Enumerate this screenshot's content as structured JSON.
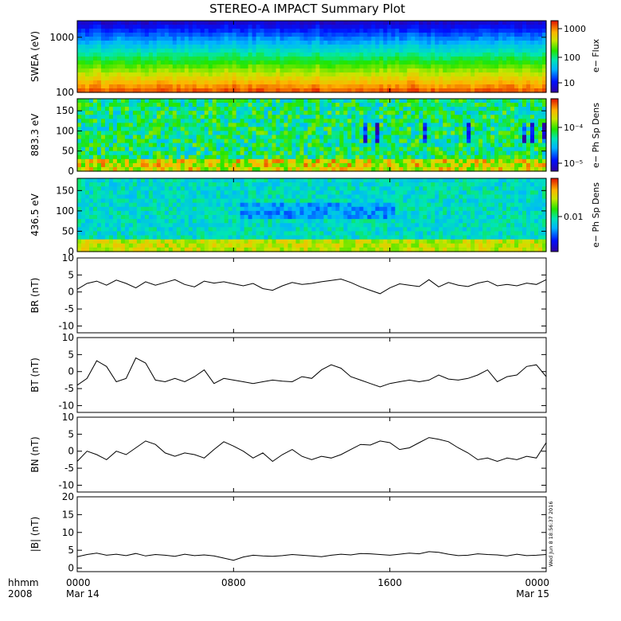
{
  "title": "STEREO-A IMPACT Summary Plot",
  "timestamp": "Wed Jun 8 18:56:37 2016",
  "time_axis": {
    "row1_label": "hhmm",
    "row2_label": "2008",
    "ticks": [
      {
        "t": 0,
        "label": "0000",
        "sub": "Mar 14"
      },
      {
        "t": 8,
        "label": "0800",
        "sub": ""
      },
      {
        "t": 16,
        "label": "1600",
        "sub": ""
      },
      {
        "t": 24,
        "label": "0000",
        "sub": "Mar 15"
      }
    ],
    "xlim": [
      0,
      24
    ]
  },
  "colorbars": [
    {
      "label": "e− Flux",
      "ticks": [
        "1000",
        "100",
        "10"
      ]
    },
    {
      "label": "e− Ph Sp Dens",
      "ticks": [
        "10⁻⁴",
        "10⁻⁵"
      ]
    },
    {
      "label": "e− Ph Sp Dens",
      "ticks": [
        "0.01"
      ]
    }
  ],
  "chart_data": [
    {
      "type": "heatmap",
      "ylabel": "SWEA (eV)",
      "yscale": "log",
      "ylim": [
        100,
        2000
      ],
      "yticks": [
        {
          "v": 1000,
          "label": "1000"
        },
        {
          "v": 100,
          "label": "100"
        }
      ],
      "colorbar_label": "e− Flux"
    },
    {
      "type": "heatmap",
      "ylabel": "883.3 eV",
      "ylim": [
        0,
        180
      ],
      "yticks": [
        {
          "v": 150,
          "label": "150"
        },
        {
          "v": 100,
          "label": "100"
        },
        {
          "v": 50,
          "label": "50"
        },
        {
          "v": 0,
          "label": "0"
        }
      ],
      "colorbar_label": "e− Ph Sp Dens"
    },
    {
      "type": "heatmap",
      "ylabel": "436.5 eV",
      "ylim": [
        0,
        180
      ],
      "yticks": [
        {
          "v": 150,
          "label": "150"
        },
        {
          "v": 100,
          "label": "100"
        },
        {
          "v": 50,
          "label": "50"
        },
        {
          "v": 0,
          "label": "0"
        }
      ],
      "colorbar_label": "e− Ph Sp Dens"
    },
    {
      "type": "line",
      "ylabel": "BR (nT)",
      "ylim": [
        -12,
        10
      ],
      "yticks": [
        10,
        5,
        0,
        -5,
        -10
      ],
      "x": [
        0,
        0.5,
        1,
        1.5,
        2,
        2.5,
        3,
        3.5,
        4,
        4.5,
        5,
        5.5,
        6,
        6.5,
        7,
        7.5,
        8,
        8.5,
        9,
        9.5,
        10,
        10.5,
        11,
        11.5,
        12,
        12.5,
        13,
        13.5,
        14,
        14.5,
        15,
        15.5,
        16,
        16.5,
        17,
        17.5,
        18,
        18.5,
        19,
        19.5,
        20,
        20.5,
        21,
        21.5,
        22,
        22.5,
        23,
        23.5,
        24
      ],
      "y": [
        0.8,
        2.5,
        3.2,
        2.0,
        3.5,
        2.5,
        1.2,
        3.0,
        2.0,
        2.8,
        3.6,
        2.2,
        1.5,
        3.2,
        2.6,
        3.0,
        2.4,
        1.8,
        2.5,
        1.0,
        0.5,
        1.8,
        2.8,
        2.2,
        2.5,
        3.0,
        3.4,
        3.8,
        2.8,
        1.5,
        0.5,
        -0.5,
        1.2,
        2.4,
        2.0,
        1.6,
        3.6,
        1.5,
        2.8,
        2.0,
        1.6,
        2.6,
        3.2,
        1.8,
        2.2,
        1.8,
        2.6,
        2.2,
        3.6
      ]
    },
    {
      "type": "line",
      "ylabel": "BT (nT)",
      "ylim": [
        -12,
        10
      ],
      "yticks": [
        10,
        5,
        0,
        -5,
        -10
      ],
      "x": [
        0,
        0.5,
        1,
        1.5,
        2,
        2.5,
        3,
        3.5,
        4,
        4.5,
        5,
        5.5,
        6,
        6.5,
        7,
        7.5,
        8,
        8.5,
        9,
        9.5,
        10,
        10.5,
        11,
        11.5,
        12,
        12.5,
        13,
        13.5,
        14,
        14.5,
        15,
        15.5,
        16,
        16.5,
        17,
        17.5,
        18,
        18.5,
        19,
        19.5,
        20,
        20.5,
        21,
        21.5,
        22,
        22.5,
        23,
        23.5,
        24
      ],
      "y": [
        -4,
        -2,
        3.2,
        1.5,
        -3,
        -2,
        4,
        2.5,
        -2.5,
        -3,
        -2,
        -3,
        -1.5,
        0.5,
        -3.5,
        -2,
        -2.5,
        -3,
        -3.5,
        -3,
        -2.5,
        -2.8,
        -3,
        -1.5,
        -2,
        0.5,
        2,
        1,
        -1.5,
        -2.5,
        -3.5,
        -4.5,
        -3.5,
        -3,
        -2.5,
        -3,
        -2.5,
        -1,
        -2.2,
        -2.5,
        -2,
        -1,
        0.5,
        -3,
        -1.5,
        -1,
        1.5,
        2,
        -1.5
      ]
    },
    {
      "type": "line",
      "ylabel": "BN (nT)",
      "ylim": [
        -12,
        10
      ],
      "yticks": [
        10,
        5,
        0,
        -5,
        -10
      ],
      "x": [
        0,
        0.5,
        1,
        1.5,
        2,
        2.5,
        3,
        3.5,
        4,
        4.5,
        5,
        5.5,
        6,
        6.5,
        7,
        7.5,
        8,
        8.5,
        9,
        9.5,
        10,
        10.5,
        11,
        11.5,
        12,
        12.5,
        13,
        13.5,
        14,
        14.5,
        15,
        15.5,
        16,
        16.5,
        17,
        17.5,
        18,
        18.5,
        19,
        19.5,
        20,
        20.5,
        21,
        21.5,
        22,
        22.5,
        23,
        23.5,
        24
      ],
      "y": [
        -3,
        0,
        -1,
        -2.5,
        0,
        -1,
        1,
        3,
        2,
        -0.5,
        -1.5,
        -0.5,
        -1,
        -2,
        0.5,
        2.8,
        1.5,
        0,
        -2,
        -0.5,
        -3,
        -1,
        0.5,
        -1.5,
        -2.5,
        -1.5,
        -2,
        -1,
        0.5,
        2,
        1.8,
        3,
        2.5,
        0.5,
        1,
        2.5,
        4,
        3.5,
        2.8,
        1,
        -0.5,
        -2.5,
        -2,
        -3,
        -2,
        -2.5,
        -1.5,
        -2,
        2.5
      ]
    },
    {
      "type": "line",
      "ylabel": "|B| (nT)",
      "ylim": [
        -1,
        20
      ],
      "yticks": [
        20,
        15,
        10,
        5,
        0
      ],
      "x": [
        0,
        0.5,
        1,
        1.5,
        2,
        2.5,
        3,
        3.5,
        4,
        4.5,
        5,
        5.5,
        6,
        6.5,
        7,
        7.5,
        8,
        8.5,
        9,
        9.5,
        10,
        10.5,
        11,
        11.5,
        12,
        12.5,
        13,
        13.5,
        14,
        14.5,
        15,
        15.5,
        16,
        16.5,
        17,
        17.5,
        18,
        18.5,
        19,
        19.5,
        20,
        20.5,
        21,
        21.5,
        22,
        22.5,
        23,
        23.5,
        24
      ],
      "y": [
        3.2,
        3.8,
        4.2,
        3.6,
        3.9,
        3.5,
        4.1,
        3.4,
        3.8,
        3.6,
        3.3,
        3.9,
        3.5,
        3.7,
        3.4,
        2.8,
        2.2,
        3.1,
        3.6,
        3.4,
        3.3,
        3.5,
        3.8,
        3.6,
        3.4,
        3.2,
        3.6,
        3.9,
        3.7,
        4.1,
        4.0,
        3.8,
        3.6,
        3.9,
        4.2,
        4.0,
        4.6,
        4.4,
        3.9,
        3.5,
        3.6,
        4.0,
        3.8,
        3.7,
        3.4,
        3.9,
        3.5,
        3.6,
        3.8
      ]
    }
  ]
}
